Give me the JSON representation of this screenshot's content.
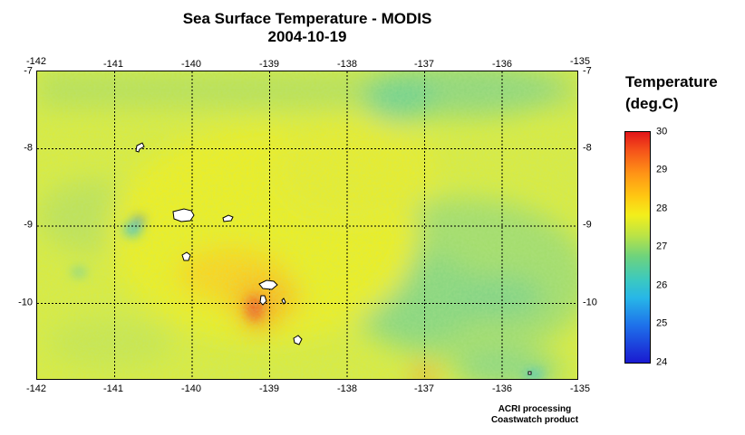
{
  "title": {
    "line1": "Sea Surface Temperature - MODIS",
    "line2": "2004-10-19"
  },
  "map": {
    "lon_range": [
      -142,
      -135
    ],
    "lat_range": [
      -7,
      -11
    ],
    "lon_ticks": [
      "-142",
      "-141",
      "-140",
      "-139",
      "-138",
      "-137",
      "-136",
      "-135"
    ],
    "lat_ticks": [
      "-7",
      "-8",
      "-9",
      "-10"
    ]
  },
  "legend": {
    "title_line1": "Temperature",
    "title_line2": "(deg.C)",
    "ticks": [
      "30",
      "29",
      "28",
      "27",
      "26",
      "25",
      "24"
    ],
    "range": [
      24,
      30
    ]
  },
  "credit": {
    "line1": "ACRI processing",
    "line2": "Coastwatch product"
  },
  "colors": {
    "land": "#ffffff",
    "gridline": "#000000",
    "cold": "#1a1ad0",
    "warm": "#e2161a"
  }
}
